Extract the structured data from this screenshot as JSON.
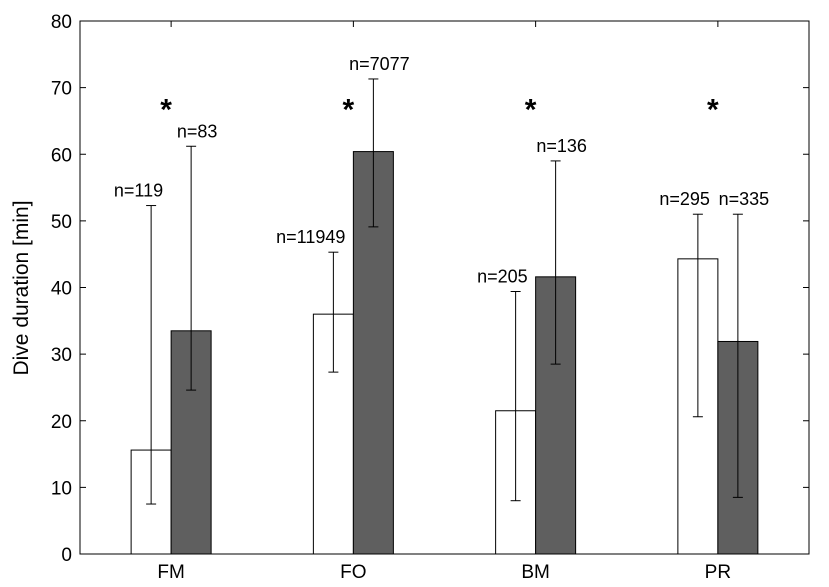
{
  "chart_data": {
    "type": "bar",
    "ylabel": "Dive duration [min]",
    "xlabel": "",
    "title": "",
    "ylim": [
      0,
      80
    ],
    "yticks": [
      0,
      10,
      20,
      30,
      40,
      50,
      60,
      70,
      80
    ],
    "categories": [
      "FM",
      "FO",
      "BM",
      "PR"
    ],
    "grid": false,
    "colors": {
      "bar_white": "#ffffff",
      "bar_gray": "#5f5f5f",
      "stroke": "#000000"
    },
    "series": [
      {
        "color": "#ffffff",
        "values": [
          15.6,
          36.0,
          21.5,
          44.3
        ],
        "err_low": [
          7.5,
          27.3,
          8.0,
          20.6
        ],
        "err_high": [
          52.3,
          45.3,
          39.4,
          51.0
        ],
        "n_labels": [
          "n=119",
          "n=11949",
          "n=205",
          "n=295"
        ]
      },
      {
        "color": "#5f5f5f",
        "values": [
          33.5,
          60.4,
          41.6,
          31.9
        ],
        "err_low": [
          24.6,
          49.1,
          28.5,
          8.5
        ],
        "err_high": [
          61.2,
          71.3,
          59.0,
          51.0
        ],
        "n_labels": [
          "n=83",
          "n=7077",
          "n=136",
          "n=335"
        ]
      }
    ],
    "significance": [
      "*",
      "*",
      "*",
      "*"
    ]
  }
}
